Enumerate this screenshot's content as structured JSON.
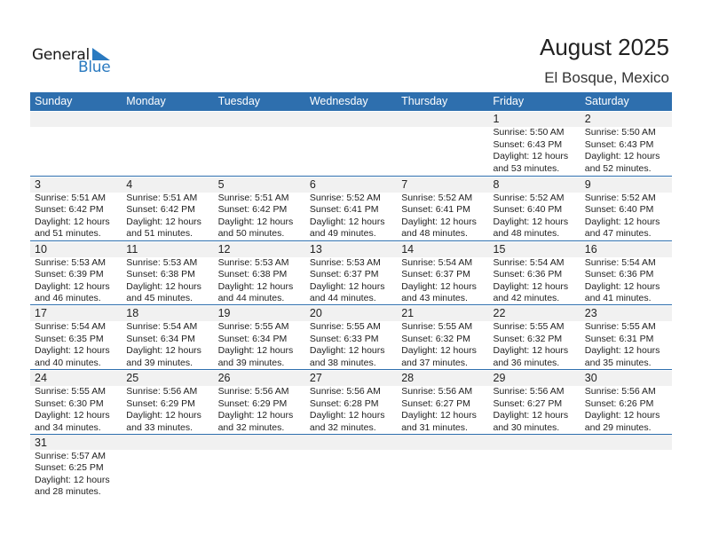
{
  "logo": {
    "word1": "General",
    "word2": "Blue",
    "color": "#2a7ac0"
  },
  "title": "August 2025",
  "subtitle": "El Bosque, Mexico",
  "colors": {
    "header": "#2e6fae",
    "band": "#f1f1f1"
  },
  "weekdays": [
    "Sunday",
    "Monday",
    "Tuesday",
    "Wednesday",
    "Thursday",
    "Friday",
    "Saturday"
  ],
  "weeks": [
    [
      null,
      null,
      null,
      null,
      null,
      {
        "day": "1",
        "lines": [
          "Sunrise: 5:50 AM",
          "Sunset: 6:43 PM",
          "Daylight: 12 hours",
          "and 53 minutes."
        ]
      },
      {
        "day": "2",
        "lines": [
          "Sunrise: 5:50 AM",
          "Sunset: 6:43 PM",
          "Daylight: 12 hours",
          "and 52 minutes."
        ]
      }
    ],
    [
      {
        "day": "3",
        "lines": [
          "Sunrise: 5:51 AM",
          "Sunset: 6:42 PM",
          "Daylight: 12 hours",
          "and 51 minutes."
        ]
      },
      {
        "day": "4",
        "lines": [
          "Sunrise: 5:51 AM",
          "Sunset: 6:42 PM",
          "Daylight: 12 hours",
          "and 51 minutes."
        ]
      },
      {
        "day": "5",
        "lines": [
          "Sunrise: 5:51 AM",
          "Sunset: 6:42 PM",
          "Daylight: 12 hours",
          "and 50 minutes."
        ]
      },
      {
        "day": "6",
        "lines": [
          "Sunrise: 5:52 AM",
          "Sunset: 6:41 PM",
          "Daylight: 12 hours",
          "and 49 minutes."
        ]
      },
      {
        "day": "7",
        "lines": [
          "Sunrise: 5:52 AM",
          "Sunset: 6:41 PM",
          "Daylight: 12 hours",
          "and 48 minutes."
        ]
      },
      {
        "day": "8",
        "lines": [
          "Sunrise: 5:52 AM",
          "Sunset: 6:40 PM",
          "Daylight: 12 hours",
          "and 48 minutes."
        ]
      },
      {
        "day": "9",
        "lines": [
          "Sunrise: 5:52 AM",
          "Sunset: 6:40 PM",
          "Daylight: 12 hours",
          "and 47 minutes."
        ]
      }
    ],
    [
      {
        "day": "10",
        "lines": [
          "Sunrise: 5:53 AM",
          "Sunset: 6:39 PM",
          "Daylight: 12 hours",
          "and 46 minutes."
        ]
      },
      {
        "day": "11",
        "lines": [
          "Sunrise: 5:53 AM",
          "Sunset: 6:38 PM",
          "Daylight: 12 hours",
          "and 45 minutes."
        ]
      },
      {
        "day": "12",
        "lines": [
          "Sunrise: 5:53 AM",
          "Sunset: 6:38 PM",
          "Daylight: 12 hours",
          "and 44 minutes."
        ]
      },
      {
        "day": "13",
        "lines": [
          "Sunrise: 5:53 AM",
          "Sunset: 6:37 PM",
          "Daylight: 12 hours",
          "and 44 minutes."
        ]
      },
      {
        "day": "14",
        "lines": [
          "Sunrise: 5:54 AM",
          "Sunset: 6:37 PM",
          "Daylight: 12 hours",
          "and 43 minutes."
        ]
      },
      {
        "day": "15",
        "lines": [
          "Sunrise: 5:54 AM",
          "Sunset: 6:36 PM",
          "Daylight: 12 hours",
          "and 42 minutes."
        ]
      },
      {
        "day": "16",
        "lines": [
          "Sunrise: 5:54 AM",
          "Sunset: 6:36 PM",
          "Daylight: 12 hours",
          "and 41 minutes."
        ]
      }
    ],
    [
      {
        "day": "17",
        "lines": [
          "Sunrise: 5:54 AM",
          "Sunset: 6:35 PM",
          "Daylight: 12 hours",
          "and 40 minutes."
        ]
      },
      {
        "day": "18",
        "lines": [
          "Sunrise: 5:54 AM",
          "Sunset: 6:34 PM",
          "Daylight: 12 hours",
          "and 39 minutes."
        ]
      },
      {
        "day": "19",
        "lines": [
          "Sunrise: 5:55 AM",
          "Sunset: 6:34 PM",
          "Daylight: 12 hours",
          "and 39 minutes."
        ]
      },
      {
        "day": "20",
        "lines": [
          "Sunrise: 5:55 AM",
          "Sunset: 6:33 PM",
          "Daylight: 12 hours",
          "and 38 minutes."
        ]
      },
      {
        "day": "21",
        "lines": [
          "Sunrise: 5:55 AM",
          "Sunset: 6:32 PM",
          "Daylight: 12 hours",
          "and 37 minutes."
        ]
      },
      {
        "day": "22",
        "lines": [
          "Sunrise: 5:55 AM",
          "Sunset: 6:32 PM",
          "Daylight: 12 hours",
          "and 36 minutes."
        ]
      },
      {
        "day": "23",
        "lines": [
          "Sunrise: 5:55 AM",
          "Sunset: 6:31 PM",
          "Daylight: 12 hours",
          "and 35 minutes."
        ]
      }
    ],
    [
      {
        "day": "24",
        "lines": [
          "Sunrise: 5:55 AM",
          "Sunset: 6:30 PM",
          "Daylight: 12 hours",
          "and 34 minutes."
        ]
      },
      {
        "day": "25",
        "lines": [
          "Sunrise: 5:56 AM",
          "Sunset: 6:29 PM",
          "Daylight: 12 hours",
          "and 33 minutes."
        ]
      },
      {
        "day": "26",
        "lines": [
          "Sunrise: 5:56 AM",
          "Sunset: 6:29 PM",
          "Daylight: 12 hours",
          "and 32 minutes."
        ]
      },
      {
        "day": "27",
        "lines": [
          "Sunrise: 5:56 AM",
          "Sunset: 6:28 PM",
          "Daylight: 12 hours",
          "and 32 minutes."
        ]
      },
      {
        "day": "28",
        "lines": [
          "Sunrise: 5:56 AM",
          "Sunset: 6:27 PM",
          "Daylight: 12 hours",
          "and 31 minutes."
        ]
      },
      {
        "day": "29",
        "lines": [
          "Sunrise: 5:56 AM",
          "Sunset: 6:27 PM",
          "Daylight: 12 hours",
          "and 30 minutes."
        ]
      },
      {
        "day": "30",
        "lines": [
          "Sunrise: 5:56 AM",
          "Sunset: 6:26 PM",
          "Daylight: 12 hours",
          "and 29 minutes."
        ]
      }
    ],
    [
      {
        "day": "31",
        "lines": [
          "Sunrise: 5:57 AM",
          "Sunset: 6:25 PM",
          "Daylight: 12 hours",
          "and 28 minutes."
        ]
      },
      null,
      null,
      null,
      null,
      null,
      null
    ]
  ]
}
